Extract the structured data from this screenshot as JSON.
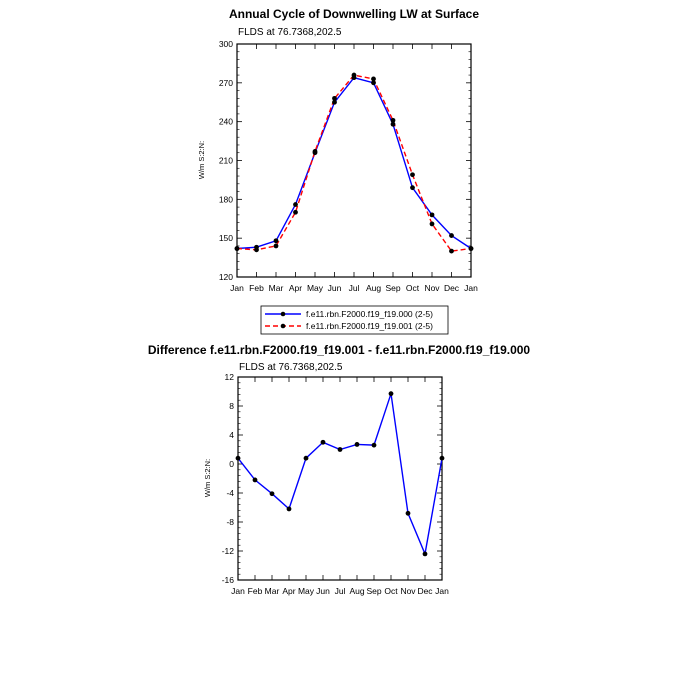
{
  "chart_data": [
    {
      "type": "line",
      "title": "Annual Cycle of Downwelling LW at Surface",
      "subtitle": "FLDS at 76.7368,202.5",
      "ylabel": "W/m S:2:N:",
      "categories": [
        "Jan",
        "Feb",
        "Mar",
        "Apr",
        "May",
        "Jun",
        "Jul",
        "Aug",
        "Sep",
        "Oct",
        "Nov",
        "Dec",
        "Jan"
      ],
      "ylim": [
        120,
        300
      ],
      "yticks": [
        "120",
        "150",
        "180",
        "210",
        "240",
        "270",
        "300"
      ],
      "series": [
        {
          "name": "f.e11.rbn.F2000.f19_f19.000 (2-5)",
          "color": "#0000ff",
          "dash": false,
          "values": [
            142,
            143,
            148,
            176,
            216,
            255,
            274,
            270,
            238,
            189,
            168,
            152,
            142
          ]
        },
        {
          "name": "f.e11.rbn.F2000.f19_f19.001 (2-5)",
          "color": "#ff0000",
          "dash": true,
          "values": [
            142,
            141,
            144,
            170,
            217,
            258,
            276,
            273,
            241,
            199,
            161,
            140,
            142
          ]
        }
      ],
      "legend": "below"
    },
    {
      "type": "line",
      "title": "Difference f.e11.rbn.F2000.f19_f19.001 - f.e11.rbn.F2000.f19_f19.000",
      "subtitle": "FLDS at 76.7368,202.5",
      "ylabel": "W/m S:2:N:",
      "categories": [
        "Jan",
        "Feb",
        "Mar",
        "Apr",
        "May",
        "Jun",
        "Jul",
        "Aug",
        "Sep",
        "Oct",
        "Nov",
        "Dec",
        "Jan"
      ],
      "ylim": [
        -16,
        12
      ],
      "yticks": [
        "-16",
        "-12",
        "-8",
        "-4",
        "0",
        "4",
        "8",
        "12"
      ],
      "series": [
        {
          "color": "#0000ff",
          "dash": false,
          "values": [
            0.8,
            -2.2,
            -4.1,
            -6.2,
            0.8,
            3.0,
            2.0,
            2.7,
            2.6,
            9.7,
            -6.8,
            -12.4,
            0.8
          ]
        }
      ]
    }
  ]
}
